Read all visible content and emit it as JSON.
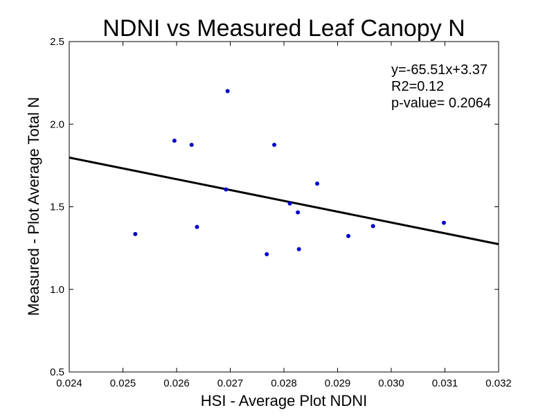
{
  "chart_data": {
    "type": "scatter",
    "title": "NDNI vs Measured Leaf Canopy N",
    "xlabel": "HSI - Average Plot NDNI",
    "ylabel": "Measured - Plot Average Total N",
    "xlim": [
      0.024,
      0.032
    ],
    "ylim": [
      0.5,
      2.5
    ],
    "x_ticks": [
      "0.024",
      "0.025",
      "0.026",
      "0.027",
      "0.028",
      "0.029",
      "0.030",
      "0.031",
      "0.032"
    ],
    "y_ticks": [
      "0.5",
      "1.0",
      "1.5",
      "2.0",
      "2.5"
    ],
    "grid": false,
    "points_color": "#0000cc",
    "line_color": "#000000",
    "points": {
      "x": [
        0.02523,
        0.02596,
        0.02628,
        0.02638,
        0.02692,
        0.02695,
        0.02768,
        0.02782,
        0.02811,
        0.02826,
        0.02828,
        0.02862,
        0.0292,
        0.02966,
        0.03098
      ],
      "y": [
        1.335,
        1.9,
        1.875,
        1.378,
        1.605,
        2.2,
        1.213,
        1.875,
        1.52,
        1.466,
        1.243,
        1.64,
        1.323,
        1.383,
        1.403
      ]
    },
    "fit_line": {
      "slope": -65.51,
      "intercept": 3.37
    },
    "annotation": [
      "y=-65.51x+3.37",
      "R2=0.12",
      "p-value= 0.2064"
    ]
  }
}
